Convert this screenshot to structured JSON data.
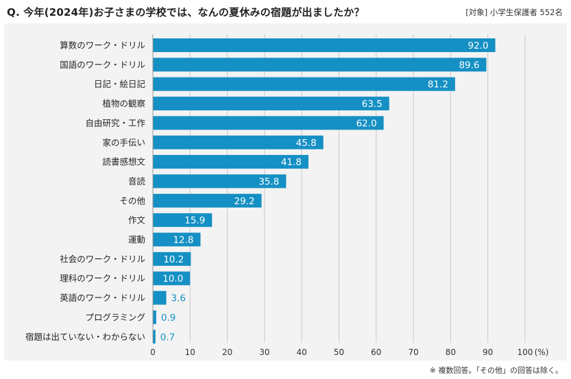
{
  "title": "Q. 今年(2024年)お子さまの学校では、なんの夏休みの宿題が出ましたか？",
  "target_note": "[対象] 小学生保護者 552名",
  "footnote": "※ 複数回答。「その他」の回答は除く。",
  "colors": {
    "bar": "#1590c4",
    "label_outside": "#1590c4",
    "plot_bg": "#f3f3f3",
    "grid": "#c8c8c8"
  },
  "chart_data": {
    "type": "bar",
    "orientation": "horizontal",
    "categories": [
      "算数のワーク・ドリル",
      "国語のワーク・ドリル",
      "日記・絵日記",
      "植物の観察",
      "自由研究・工作",
      "家の手伝い",
      "読書感想文",
      "音読",
      "その他",
      "作文",
      "運動",
      "社会のワーク・ドリル",
      "理科のワーク・ドリル",
      "英語のワーク・ドリル",
      "プログラミング",
      "宿題は出ていない・わからない"
    ],
    "values": [
      92.0,
      89.6,
      81.2,
      63.5,
      62.0,
      45.8,
      41.8,
      35.8,
      29.2,
      15.9,
      12.8,
      10.2,
      10.0,
      3.6,
      0.9,
      0.7
    ],
    "value_labels": [
      "92.0",
      "89.6",
      "81.2",
      "63.5",
      "62.0",
      "45.8",
      "41.8",
      "35.8",
      "29.2",
      "15.9",
      "12.8",
      "10.2",
      "10.0",
      "3.6",
      "0.9",
      "0.7"
    ],
    "x_ticks": [
      "0",
      "10",
      "20",
      "30",
      "40",
      "50",
      "60",
      "70",
      "80",
      "90",
      "100"
    ],
    "x_unit": "(%)",
    "xlim": [
      0,
      100
    ],
    "grid": true
  }
}
